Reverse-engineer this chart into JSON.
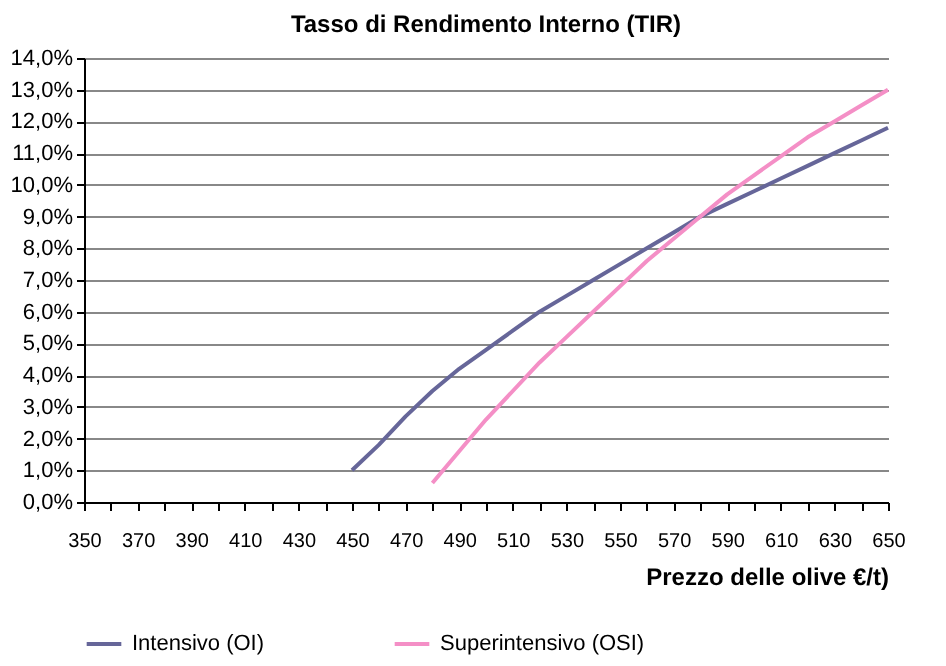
{
  "chart_data": {
    "type": "line",
    "title": "Tasso di Rendimento Interno (TIR)",
    "xlabel": "Prezzo delle olive  €/t)",
    "x": [
      450,
      460,
      470,
      480,
      490,
      500,
      510,
      520,
      530,
      540,
      550,
      560,
      570,
      580,
      590,
      600,
      610,
      620,
      630,
      640,
      650
    ],
    "series": [
      {
        "name": "Intensivo (OI)",
        "color": "#666699",
        "values": [
          1.0,
          1.8,
          2.7,
          3.5,
          4.2,
          4.8,
          5.4,
          6.0,
          6.5,
          7.0,
          7.5,
          8.0,
          8.5,
          9.0,
          9.4,
          9.8,
          10.2,
          10.6,
          11.0,
          11.4,
          11.8
        ]
      },
      {
        "name": "Superintensivo (OSI)",
        "color": "#f48fc6",
        "values": [
          null,
          null,
          null,
          0.6,
          1.6,
          2.6,
          3.5,
          4.4,
          5.2,
          6.0,
          6.8,
          7.6,
          8.3,
          9.0,
          9.7,
          10.3,
          10.9,
          11.5,
          12.0,
          12.5,
          13.0
        ]
      }
    ],
    "xlim": [
      350,
      650
    ],
    "xticks": [
      350,
      {
        "value": 360,
        "label": null
      },
      370,
      {
        "value": 380,
        "label": null
      },
      390,
      {
        "value": 400,
        "label": null
      },
      410,
      {
        "value": 420,
        "label": null
      },
      430,
      {
        "value": 440,
        "label": null
      },
      450,
      {
        "value": 460,
        "label": null
      },
      470,
      {
        "value": 480,
        "label": null
      },
      490,
      {
        "value": 500,
        "label": null
      },
      510,
      {
        "value": 520,
        "label": null
      },
      530,
      {
        "value": 540,
        "label": null
      },
      550,
      {
        "value": 560,
        "label": null
      },
      570,
      {
        "value": 580,
        "label": null
      },
      590,
      {
        "value": 600,
        "label": null
      },
      610,
      {
        "value": 620,
        "label": null
      },
      630,
      {
        "value": 640,
        "label": null
      },
      650
    ],
    "ylim": [
      0,
      14
    ],
    "yticks": [
      {
        "value": 0,
        "label": "0,0%"
      },
      {
        "value": 1,
        "label": "1,0%"
      },
      {
        "value": 2,
        "label": "2,0%"
      },
      {
        "value": 3,
        "label": "3,0%"
      },
      {
        "value": 4,
        "label": "4,0%"
      },
      {
        "value": 5,
        "label": "5,0%"
      },
      {
        "value": 6,
        "label": "6,0%"
      },
      {
        "value": 7,
        "label": "7,0%"
      },
      {
        "value": 8,
        "label": "8,0%"
      },
      {
        "value": 9,
        "label": "9,0%"
      },
      {
        "value": 10,
        "label": "10,0%"
      },
      {
        "value": 11,
        "label": "11,0%"
      },
      {
        "value": 12,
        "label": "12,0%"
      },
      {
        "value": 13,
        "label": "13,0%"
      },
      {
        "value": 14,
        "label": "14,0%"
      }
    ],
    "grid": "y",
    "legend": "bottom",
    "marker": "none",
    "line_style": "solid"
  }
}
